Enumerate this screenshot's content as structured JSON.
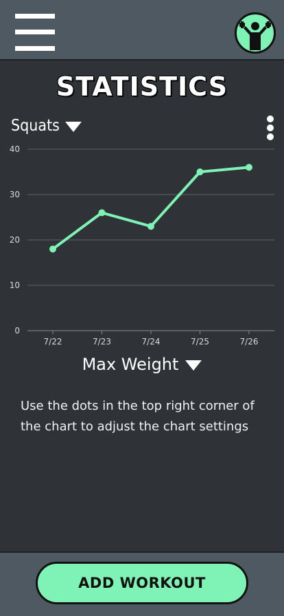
{
  "header": {
    "menu_icon": "hamburger-menu-icon",
    "avatar_icon": "weightlifter-icon"
  },
  "page": {
    "title": "STATISTICS"
  },
  "exercise_dropdown": {
    "selected": "Squats"
  },
  "metric_dropdown": {
    "selected": "Max Weight"
  },
  "hint_text": "Use the dots in the top right corner of the chart to adjust the chart settings",
  "footer": {
    "add_workout_label": "ADD WORKOUT"
  },
  "colors": {
    "accent": "#7ef3b5",
    "background": "#2f3338",
    "bar": "#4f5961"
  },
  "chart_data": {
    "type": "line",
    "categories": [
      "7/22",
      "7/23",
      "7/24",
      "7/25",
      "7/26"
    ],
    "series": [
      {
        "values": [
          18,
          26,
          23,
          35,
          36
        ]
      }
    ],
    "ylim": [
      0,
      40
    ],
    "yticks": [
      0,
      10,
      20,
      30,
      40
    ],
    "grid": true,
    "line_color": "#7ef3b5"
  }
}
